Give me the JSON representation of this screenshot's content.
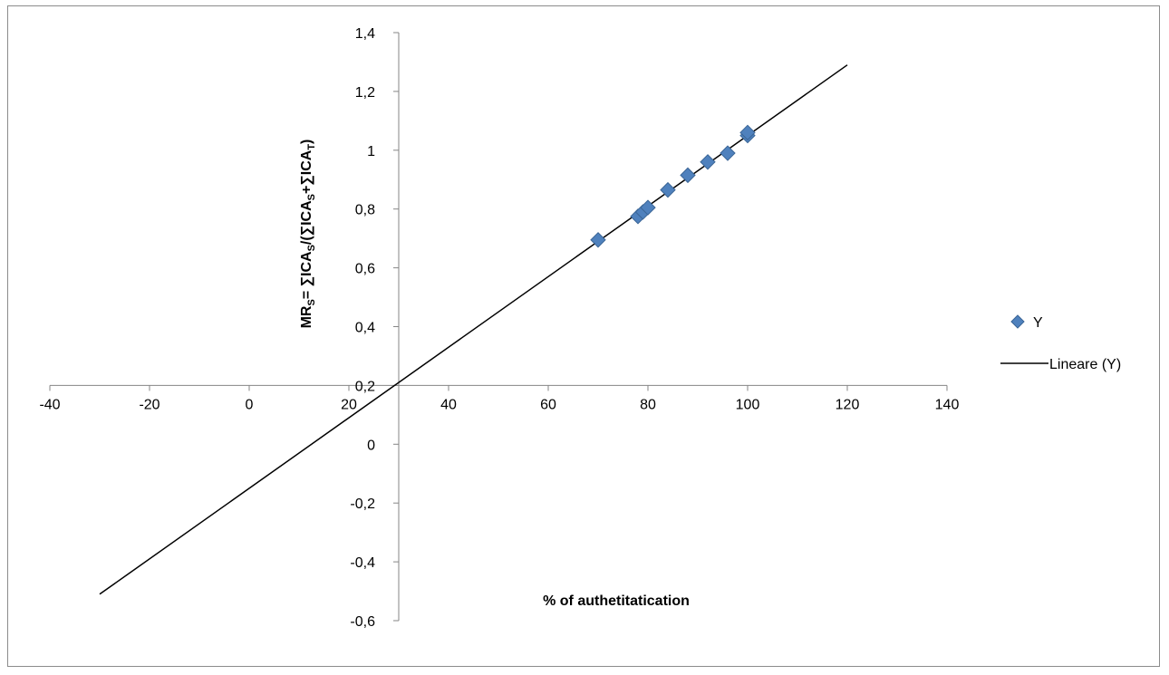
{
  "chart_data": {
    "type": "scatter",
    "title": "",
    "xlabel": "% of authetitatication",
    "ylabel_parts": [
      "MR",
      "S",
      "= ∑ICA",
      "S",
      "/(∑ICA",
      "S",
      "+∑ICA",
      "T",
      ")"
    ],
    "xlim": [
      -40,
      140
    ],
    "ylim": [
      -0.6,
      1.4
    ],
    "x_ticks": [
      -40,
      -20,
      0,
      20,
      40,
      60,
      80,
      100,
      120,
      140
    ],
    "x_tick_labels": [
      "-40",
      "-20",
      "0",
      "20",
      "40",
      "60",
      "80",
      "100",
      "120",
      "140"
    ],
    "y_ticks": [
      -0.6,
      -0.4,
      -0.2,
      0,
      0.2,
      0.4,
      0.6,
      0.8,
      1,
      1.2,
      1.4
    ],
    "y_tick_labels": [
      "-0,6",
      "-0,4",
      "-0,2",
      "0",
      "0,2",
      "0,4",
      "0,6",
      "0,8",
      "1",
      "1,2",
      "1,4"
    ],
    "grid": false,
    "legend_position": "right",
    "series": [
      {
        "name": "Y",
        "color": "#4f81bd",
        "marker": "diamond",
        "points": [
          {
            "x": 70,
            "y": 0.695
          },
          {
            "x": 78,
            "y": 0.775
          },
          {
            "x": 79,
            "y": 0.79
          },
          {
            "x": 80,
            "y": 0.805
          },
          {
            "x": 84,
            "y": 0.865
          },
          {
            "x": 88,
            "y": 0.915
          },
          {
            "x": 92,
            "y": 0.96
          },
          {
            "x": 96,
            "y": 0.99
          },
          {
            "x": 100,
            "y": 1.05
          },
          {
            "x": 100,
            "y": 1.06
          }
        ]
      }
    ],
    "trendline": {
      "name": "Lineare (Y)",
      "color": "#000000",
      "x_range": [
        -30,
        120
      ],
      "points": [
        {
          "x": -30,
          "y": -0.51
        },
        {
          "x": 120,
          "y": 1.29
        }
      ]
    }
  }
}
